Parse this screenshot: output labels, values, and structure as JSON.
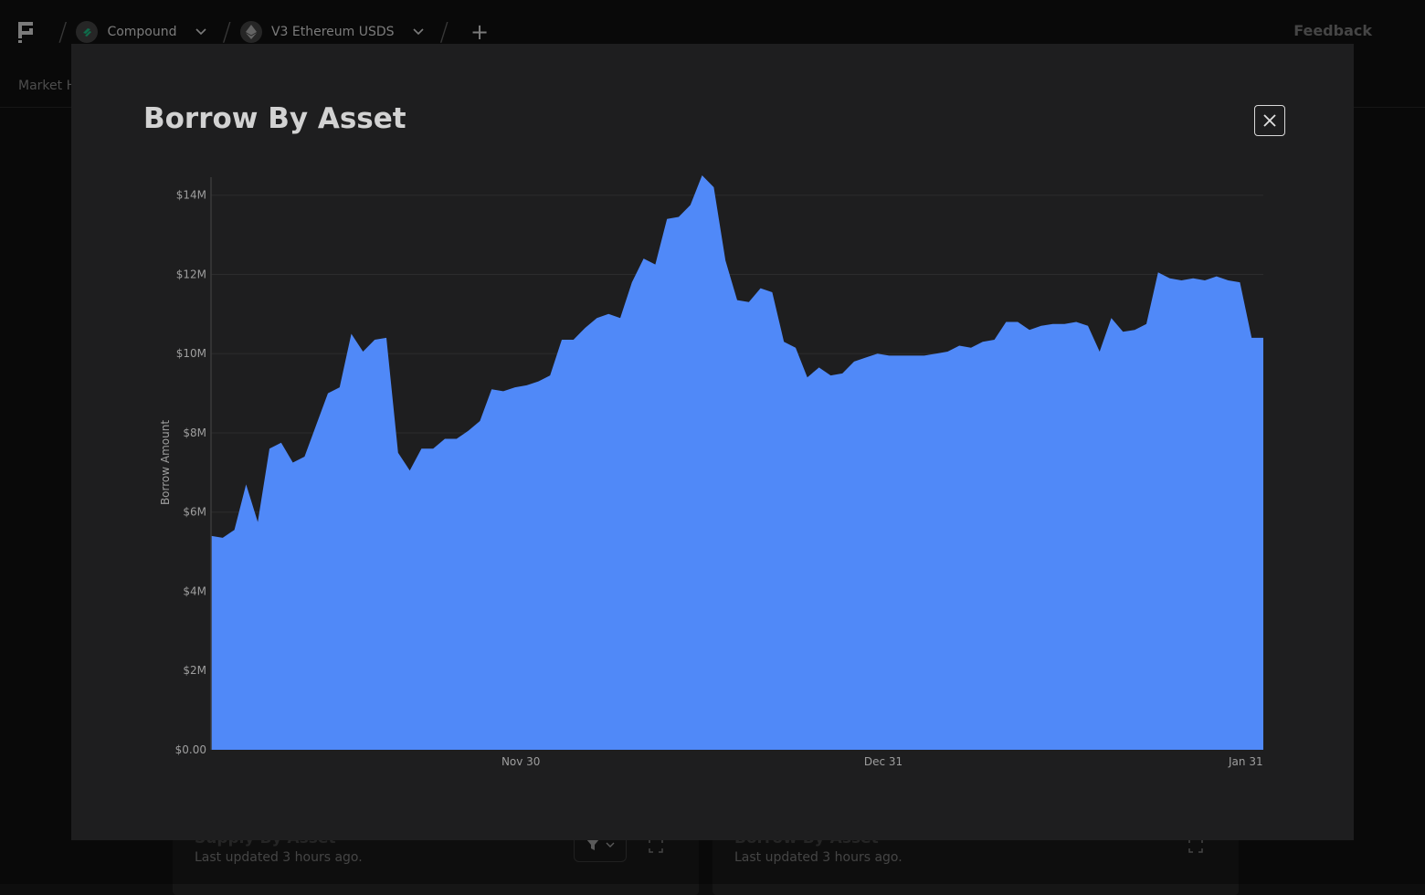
{
  "header": {
    "protocol": {
      "label": "Compound",
      "icon": "compound-logo-icon"
    },
    "market": {
      "label": "V3 Ethereum USDS",
      "icon": "ethereum-icon"
    },
    "feedback_label": "Feedback"
  },
  "subnav": {
    "first_tab": "Market H"
  },
  "cards": [
    {
      "title": "Supply By Asset",
      "subtitle": "Last updated 3 hours ago."
    },
    {
      "title": "Borrow By Asset",
      "subtitle": "Last updated 3 hours ago."
    }
  ],
  "modal": {
    "title": "Borrow By Asset",
    "close_icon": "close-icon"
  },
  "colors": {
    "area_fill": "#5089f8",
    "background": "#1e1e1f"
  },
  "chart_data": {
    "type": "area",
    "title": "Borrow By Asset",
    "xlabel": "",
    "ylabel": "Borrow Amount",
    "ylim": [
      0,
      14500000
    ],
    "yticks": [
      {
        "value": 0,
        "label": "$0.00"
      },
      {
        "value": 2000000,
        "label": "$2M"
      },
      {
        "value": 4000000,
        "label": "$4M"
      },
      {
        "value": 6000000,
        "label": "$6M"
      },
      {
        "value": 8000000,
        "label": "$8M"
      },
      {
        "value": 10000000,
        "label": "$10M"
      },
      {
        "value": 12000000,
        "label": "$12M"
      },
      {
        "value": 14000000,
        "label": "$14M"
      }
    ],
    "xticks": [
      {
        "index": 26.5,
        "label": "Nov 30"
      },
      {
        "index": 57.5,
        "label": "Dec 31"
      },
      {
        "index": 88.5,
        "label": "Jan 31"
      }
    ],
    "grid": true,
    "series": [
      {
        "values": [
          5.4,
          5.35,
          5.55,
          6.7,
          5.75,
          7.6,
          7.75,
          7.25,
          7.4,
          8.2,
          9.0,
          9.15,
          10.5,
          10.05,
          10.35,
          10.4,
          7.5,
          7.05,
          7.6,
          7.6,
          7.85,
          7.85,
          8.05,
          8.3,
          9.1,
          9.05,
          9.15,
          9.2,
          9.3,
          9.45,
          10.35,
          10.35,
          10.65,
          10.9,
          11.0,
          10.9,
          11.8,
          12.4,
          12.25,
          13.4,
          13.45,
          13.75,
          14.5,
          14.2,
          12.35,
          11.35,
          11.3,
          11.65,
          11.55,
          10.3,
          10.15,
          9.4,
          9.65,
          9.45,
          9.5,
          9.8,
          9.9,
          10.0,
          9.95,
          9.95,
          9.95,
          9.95,
          10.0,
          10.05,
          10.2,
          10.15,
          10.3,
          10.35,
          10.8,
          10.8,
          10.6,
          10.7,
          10.75,
          10.75,
          10.8,
          10.7,
          10.05,
          10.9,
          10.55,
          10.6,
          10.75,
          12.05,
          11.9,
          11.85,
          11.9,
          11.85,
          11.95,
          11.85,
          11.8,
          10.4,
          10.4
        ]
      }
    ],
    "value_unit": "millions USD"
  }
}
